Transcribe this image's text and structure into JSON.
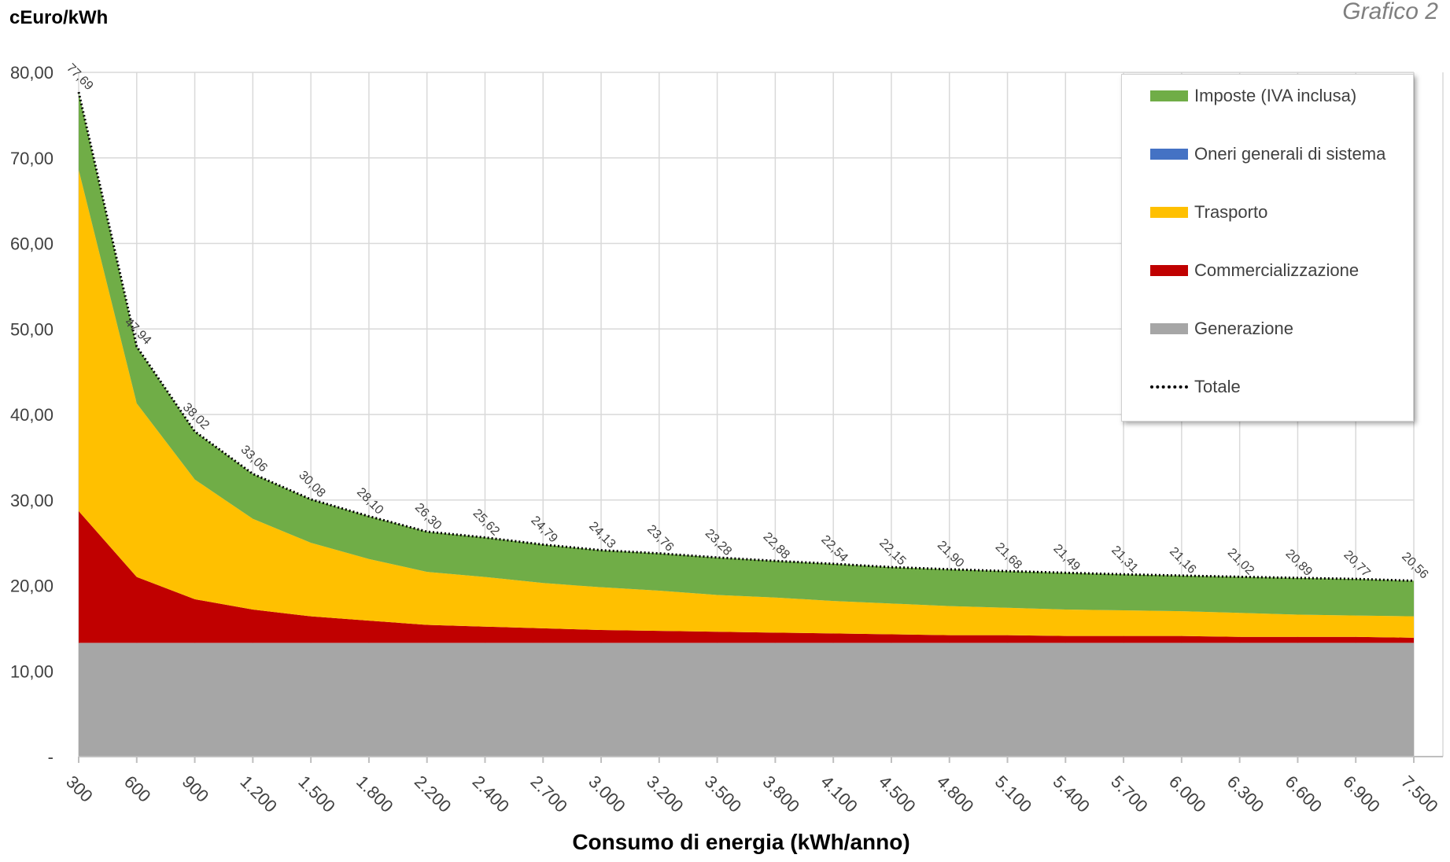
{
  "chart_data": {
    "type": "area",
    "stacked": true,
    "title": "Grafico 2",
    "ylabel": "cEuro/kWh",
    "xlabel": "Consumo di energia (kWh/anno)",
    "ylim": [
      0,
      80
    ],
    "y_ticks": [
      "-",
      "10,00",
      "20,00",
      "30,00",
      "40,00",
      "50,00",
      "60,00",
      "70,00",
      "80,00"
    ],
    "y_tick_values": [
      0,
      10,
      20,
      30,
      40,
      50,
      60,
      70,
      80
    ],
    "categories": [
      "300",
      "600",
      "900",
      "1.200",
      "1.500",
      "1.800",
      "2.200",
      "2.400",
      "2.700",
      "3.000",
      "3.200",
      "3.500",
      "3.800",
      "4.100",
      "4.500",
      "4.800",
      "5.100",
      "5.400",
      "5.700",
      "6.000",
      "6.300",
      "6.600",
      "6.900",
      "7.500"
    ],
    "grid": true,
    "legend_position": "top-right",
    "series": [
      {
        "name": "Generazione",
        "color": "#a6a6a6",
        "values": [
          13.3,
          13.3,
          13.3,
          13.3,
          13.3,
          13.3,
          13.3,
          13.3,
          13.3,
          13.3,
          13.3,
          13.3,
          13.3,
          13.3,
          13.3,
          13.3,
          13.3,
          13.3,
          13.3,
          13.3,
          13.3,
          13.3,
          13.3,
          13.3
        ]
      },
      {
        "name": "Commercializzazione",
        "color": "#c00000",
        "values": [
          15.4,
          7.7,
          5.1,
          3.9,
          3.1,
          2.6,
          2.1,
          1.9,
          1.7,
          1.5,
          1.4,
          1.3,
          1.2,
          1.1,
          1.0,
          0.9,
          0.9,
          0.8,
          0.8,
          0.8,
          0.7,
          0.7,
          0.7,
          0.6
        ]
      },
      {
        "name": "Trasporto",
        "color": "#ffc000",
        "values": [
          39.9,
          20.3,
          14.0,
          10.6,
          8.6,
          7.2,
          6.2,
          5.8,
          5.3,
          5.0,
          4.7,
          4.3,
          4.1,
          3.8,
          3.6,
          3.4,
          3.2,
          3.1,
          3.0,
          2.9,
          2.8,
          2.6,
          2.5,
          2.5
        ]
      },
      {
        "name": "Oneri generali di sistema",
        "color": "#4472c4",
        "values": [
          0,
          0,
          0,
          0,
          0,
          0,
          0,
          0,
          0,
          0,
          0,
          0,
          0,
          0,
          0,
          0,
          0,
          0,
          0,
          0,
          0,
          0,
          0,
          0
        ]
      },
      {
        "name": "Imposte (IVA inclusa)",
        "color": "#70ad47",
        "values": [
          9.09,
          6.64,
          5.62,
          5.26,
          5.08,
          5.0,
          4.7,
          4.62,
          4.49,
          4.33,
          4.36,
          4.38,
          4.28,
          4.34,
          4.25,
          4.3,
          4.28,
          4.29,
          4.21,
          4.16,
          4.22,
          4.29,
          4.27,
          4.16
        ]
      }
    ],
    "total": {
      "name": "Totale",
      "values": [
        77.69,
        47.94,
        38.02,
        33.06,
        30.08,
        28.1,
        26.3,
        25.62,
        24.79,
        24.13,
        23.76,
        23.28,
        22.88,
        22.54,
        22.15,
        21.9,
        21.68,
        21.49,
        21.31,
        21.16,
        21.02,
        20.89,
        20.77,
        20.56
      ],
      "labels": [
        "77,69",
        "47,94",
        "38,02",
        "33,06",
        "30,08",
        "28,10",
        "26,30",
        "25,62",
        "24,79",
        "24,13",
        "23,76",
        "23,28",
        "22,88",
        "22,54",
        "22,15",
        "21,90",
        "21,68",
        "21,49",
        "21,31",
        "21,16",
        "21,02",
        "20,89",
        "20,77",
        "20,56"
      ]
    },
    "legend_order": [
      "Imposte (IVA inclusa)",
      "Oneri generali di sistema",
      "Trasporto",
      "Commercializzazione",
      "Generazione",
      "Totale"
    ]
  }
}
